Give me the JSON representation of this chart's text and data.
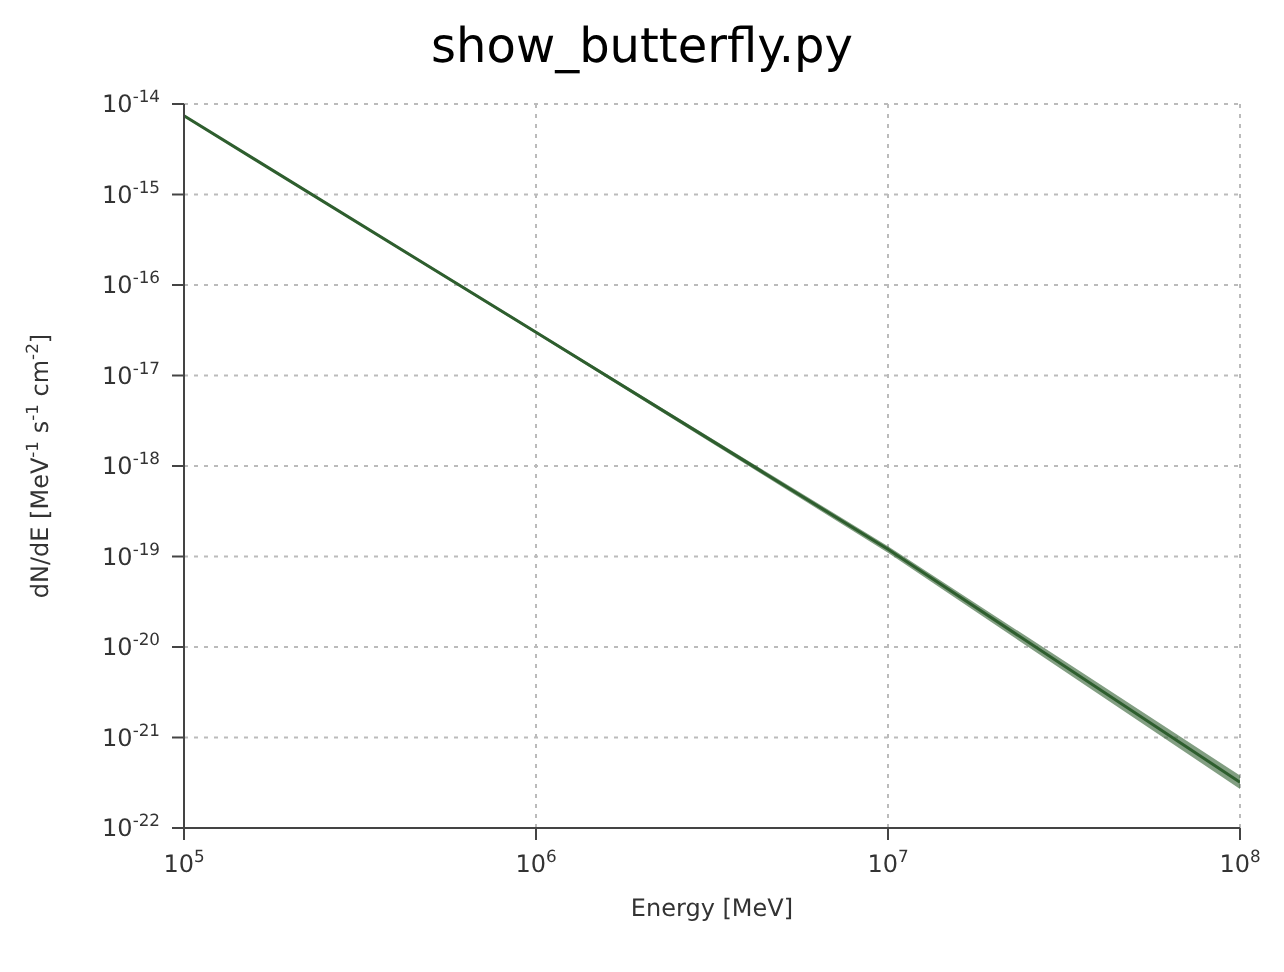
{
  "chart_data": {
    "type": "line",
    "title": "show_butterfly.py",
    "xlabel": "Energy [MeV]",
    "ylabel": "dN/dE [MeV$^{-1}$ s$^{-1}$ cm$^{-2}$]",
    "x": [
      100000,
      1000000,
      10000000,
      100000000
    ],
    "series": [
      {
        "color": "#2e5e2e",
        "values": [
          7.4e-15,
          3e-17,
          1.2e-19,
          3.2e-22
        ],
        "lower": [
          7.2e-15,
          2.9e-17,
          1.1e-19,
          2.7e-22
        ],
        "upper": [
          7.6e-15,
          3.1e-17,
          1.3e-19,
          3.8e-22
        ]
      }
    ],
    "log": "xy",
    "xlim": [
      100000,
      100000000
    ],
    "ylim": [
      1e-22,
      1e-14
    ],
    "xticks": [
      {
        "value": 100000,
        "label": "10$^{5}$"
      },
      {
        "value": 1000000,
        "label": "10$^{6}$"
      },
      {
        "value": 10000000,
        "label": "10$^{7}$"
      },
      {
        "value": 100000000,
        "label": "10$^{8}$"
      }
    ],
    "yticks": [
      {
        "value": 1e-22,
        "label": "10$^{-22}$"
      },
      {
        "value": 1e-21,
        "label": "10$^{-21}$"
      },
      {
        "value": 1e-20,
        "label": "10$^{-20}$"
      },
      {
        "value": 1e-19,
        "label": "10$^{-19}$"
      },
      {
        "value": 1e-18,
        "label": "10$^{-18}$"
      },
      {
        "value": 1e-17,
        "label": "10$^{-17}$"
      },
      {
        "value": 1e-16,
        "label": "10$^{-16}$"
      },
      {
        "value": 1e-15,
        "label": "10$^{-15}$"
      },
      {
        "value": 1e-14,
        "label": "10$^{-14}$"
      }
    ],
    "grid": true,
    "legend": false,
    "marker": "none",
    "line_style": "solid"
  }
}
